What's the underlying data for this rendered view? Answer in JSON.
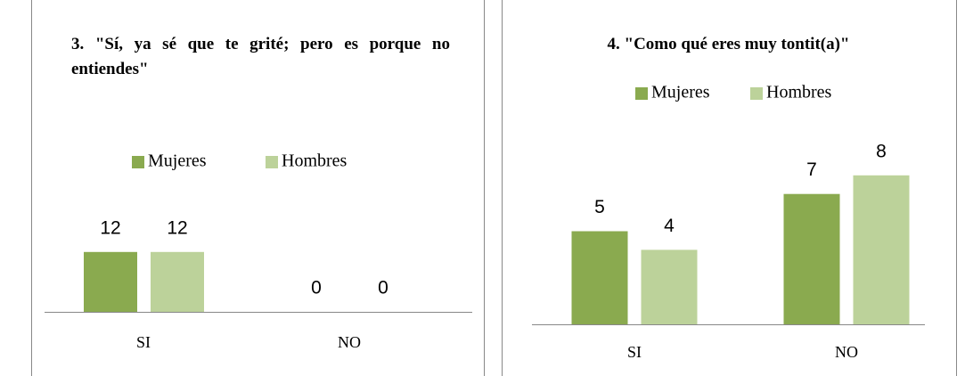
{
  "chart_data": [
    {
      "type": "bar",
      "title": "3. \"Sí, ya sé que te grité; pero es porque no entiendes\"",
      "categories": [
        "SI",
        "NO"
      ],
      "series": [
        {
          "name": "Mujeres",
          "color": "#8aaa4f",
          "values": [
            12,
            0
          ]
        },
        {
          "name": "Hombres",
          "color": "#bcd29a",
          "values": [
            12,
            0
          ]
        }
      ]
    },
    {
      "type": "bar",
      "title": "4. \"Como qué eres muy tontit(a)\"",
      "categories": [
        "SI",
        "NO"
      ],
      "series": [
        {
          "name": "Mujeres",
          "color": "#8aaa4f",
          "values": [
            5,
            7
          ]
        },
        {
          "name": "Hombres",
          "color": "#bcd29a",
          "values": [
            4,
            8
          ]
        }
      ]
    }
  ]
}
